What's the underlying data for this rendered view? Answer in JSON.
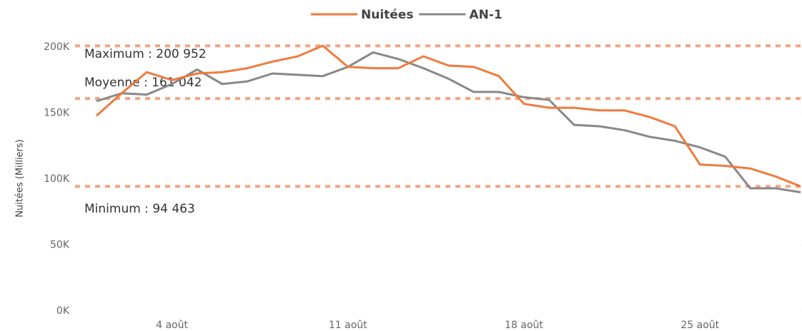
{
  "chart_data": {
    "type": "line",
    "y_label": "Nuitées (Milliers)",
    "categories": [
      null,
      null,
      null,
      "4 août",
      null,
      null,
      null,
      null,
      null,
      null,
      "11 août",
      null,
      null,
      null,
      null,
      null,
      null,
      "18 août",
      null,
      null,
      null,
      null,
      null,
      null,
      "25 août",
      null,
      null,
      null,
      null
    ],
    "series": [
      {
        "name": "Nuitées",
        "color": "#f07b3f",
        "values": [
          148,
          165,
          181,
          175,
          180,
          181,
          184,
          189,
          193,
          201,
          185,
          184,
          184,
          193,
          186,
          185,
          178,
          157,
          154,
          154,
          152,
          152,
          147,
          140,
          111,
          110,
          108,
          102,
          94.5
        ]
      },
      {
        "name": "AN-1",
        "color": "#888888",
        "values": [
          159,
          165,
          164,
          172,
          183,
          172,
          174,
          180,
          179,
          178,
          185,
          196,
          191,
          184,
          176,
          166,
          166,
          162,
          160,
          141,
          140,
          137,
          132,
          129,
          124,
          117,
          93,
          93,
          90
        ]
      }
    ],
    "reference_lines": [
      {
        "label": "Maximum : 200 952",
        "value": 200.952
      },
      {
        "label": "Moyenne : 161 042",
        "value": 161.042
      },
      {
        "label": "Minimum : 94 463",
        "value": 94.463
      }
    ],
    "reference_color": "#f4a582",
    "ylim": [
      0,
      200
    ],
    "yticks": [
      {
        "value": 0,
        "label": "0K"
      },
      {
        "value": 50,
        "label": "50K"
      },
      {
        "value": 100,
        "label": "100K"
      },
      {
        "value": 150,
        "label": "150K"
      },
      {
        "value": 200,
        "label": "200K"
      }
    ],
    "legend": "top"
  }
}
